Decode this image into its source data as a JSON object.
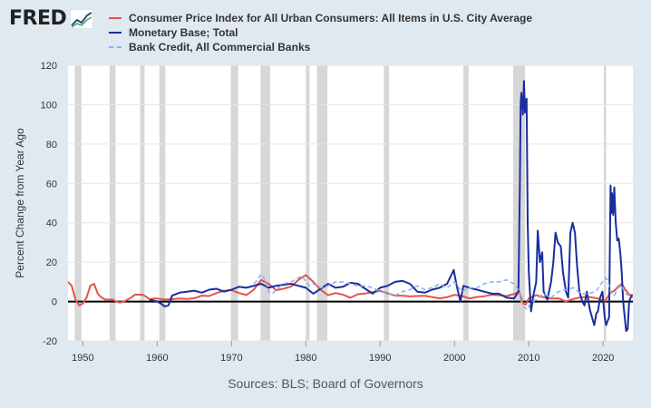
{
  "logo": {
    "text": "FRED",
    "icon": "chart-line-icon"
  },
  "source_text": "Sources: BLS; Board of Governors",
  "colors": {
    "cpi": "#e5534b",
    "monetary_base": "#1a2d9e",
    "bank_credit": "#8cb4e8",
    "recession": "#d7d7d7",
    "background": "#e1e9f0"
  },
  "chart_data": {
    "type": "line",
    "ylabel": "Percent Change from Year Ago",
    "xlim": [
      1948,
      2024
    ],
    "ylim": [
      -20,
      120
    ],
    "yticks": [
      -20,
      0,
      20,
      40,
      60,
      80,
      100,
      120
    ],
    "xticks": [
      1950,
      1960,
      1970,
      1980,
      1990,
      2000,
      2010,
      2020
    ],
    "grid": true,
    "legend_position": "top",
    "recessions": [
      [
        1948.9,
        1949.8
      ],
      [
        1953.6,
        1954.4
      ],
      [
        1957.7,
        1958.3
      ],
      [
        1960.3,
        1961.1
      ],
      [
        1969.9,
        1970.9
      ],
      [
        1973.9,
        1975.2
      ],
      [
        1980.0,
        1980.5
      ],
      [
        1981.5,
        1982.9
      ],
      [
        1990.5,
        1991.2
      ],
      [
        2001.2,
        2001.9
      ],
      [
        2007.9,
        2009.5
      ],
      [
        2020.1,
        2020.4
      ]
    ],
    "series": [
      {
        "name": "Consumer Price Index for All Urban Consumers: All Items in U.S. City Average",
        "style": "solid",
        "points": [
          [
            1948,
            10
          ],
          [
            1948.5,
            8
          ],
          [
            1949,
            1
          ],
          [
            1949.5,
            -2
          ],
          [
            1950,
            -1
          ],
          [
            1950.5,
            2
          ],
          [
            1951,
            8
          ],
          [
            1951.5,
            9
          ],
          [
            1952,
            4
          ],
          [
            1952.5,
            2
          ],
          [
            1953,
            1
          ],
          [
            1953.5,
            1
          ],
          [
            1954,
            1
          ],
          [
            1954.5,
            0
          ],
          [
            1955,
            -0.5
          ],
          [
            1955.5,
            0
          ],
          [
            1956,
            1
          ],
          [
            1956.5,
            2
          ],
          [
            1957,
            3.5
          ],
          [
            1957.5,
            3.5
          ],
          [
            1958,
            3.5
          ],
          [
            1958.5,
            2.5
          ],
          [
            1959,
            1
          ],
          [
            1959.5,
            1.5
          ],
          [
            1960,
            1.5
          ],
          [
            1961,
            1
          ],
          [
            1962,
            1.2
          ],
          [
            1963,
            1.5
          ],
          [
            1964,
            1.3
          ],
          [
            1965,
            1.7
          ],
          [
            1966,
            3
          ],
          [
            1967,
            2.8
          ],
          [
            1968,
            4.3
          ],
          [
            1969,
            5.5
          ],
          [
            1970,
            5.8
          ],
          [
            1971,
            4.3
          ],
          [
            1972,
            3.3
          ],
          [
            1973,
            6
          ],
          [
            1974,
            11
          ],
          [
            1975,
            9
          ],
          [
            1976,
            5.8
          ],
          [
            1977,
            6.5
          ],
          [
            1978,
            7.6
          ],
          [
            1979,
            11
          ],
          [
            1980,
            13.5
          ],
          [
            1981,
            10
          ],
          [
            1982,
            6
          ],
          [
            1983,
            3.2
          ],
          [
            1984,
            4.3
          ],
          [
            1985,
            3.5
          ],
          [
            1986,
            1.9
          ],
          [
            1987,
            3.7
          ],
          [
            1988,
            4.1
          ],
          [
            1989,
            4.8
          ],
          [
            1990,
            5.4
          ],
          [
            1991,
            4.2
          ],
          [
            1992,
            3
          ],
          [
            1993,
            3
          ],
          [
            1994,
            2.6
          ],
          [
            1995,
            2.8
          ],
          [
            1996,
            2.9
          ],
          [
            1997,
            2.3
          ],
          [
            1998,
            1.6
          ],
          [
            1999,
            2.2
          ],
          [
            2000,
            3.4
          ],
          [
            2001,
            2.8
          ],
          [
            2002,
            1.6
          ],
          [
            2003,
            2.3
          ],
          [
            2004,
            2.7
          ],
          [
            2005,
            3.4
          ],
          [
            2006,
            3.2
          ],
          [
            2007,
            2.8
          ],
          [
            2008,
            3.8
          ],
          [
            2008.7,
            5
          ],
          [
            2009.2,
            -1
          ],
          [
            2009.6,
            -1.5
          ],
          [
            2010,
            1.6
          ],
          [
            2011,
            3.2
          ],
          [
            2012,
            2.1
          ],
          [
            2013,
            1.5
          ],
          [
            2014,
            1.6
          ],
          [
            2015,
            0.1
          ],
          [
            2016,
            1.3
          ],
          [
            2017,
            2.1
          ],
          [
            2018,
            2.4
          ],
          [
            2019,
            1.8
          ],
          [
            2020.3,
            0.3
          ],
          [
            2021,
            4.7
          ],
          [
            2021.5,
            5.4
          ],
          [
            2022,
            7.5
          ],
          [
            2022.5,
            8.9
          ],
          [
            2023,
            6
          ],
          [
            2023.5,
            3.5
          ],
          [
            2024,
            3.2
          ]
        ]
      },
      {
        "name": "Monetary Base; Total",
        "style": "solid",
        "points": [
          [
            1959,
            1
          ],
          [
            1960,
            0
          ],
          [
            1960.5,
            -1
          ],
          [
            1961,
            -2.5
          ],
          [
            1961.5,
            -2
          ],
          [
            1962,
            3
          ],
          [
            1963,
            4.5
          ],
          [
            1964,
            5
          ],
          [
            1965,
            5.5
          ],
          [
            1966,
            4.5
          ],
          [
            1967,
            6
          ],
          [
            1968,
            6.5
          ],
          [
            1969,
            5
          ],
          [
            1970,
            6
          ],
          [
            1971,
            7.5
          ],
          [
            1972,
            7
          ],
          [
            1973,
            8
          ],
          [
            1974,
            9
          ],
          [
            1975,
            7
          ],
          [
            1976,
            8
          ],
          [
            1977,
            8.5
          ],
          [
            1978,
            9
          ],
          [
            1979,
            8
          ],
          [
            1980,
            7
          ],
          [
            1981,
            4
          ],
          [
            1982,
            6.5
          ],
          [
            1983,
            9
          ],
          [
            1984,
            7
          ],
          [
            1985,
            7.5
          ],
          [
            1986,
            9.5
          ],
          [
            1987,
            9
          ],
          [
            1988,
            6.5
          ],
          [
            1989,
            4
          ],
          [
            1990,
            7
          ],
          [
            1991,
            8
          ],
          [
            1992,
            10
          ],
          [
            1993,
            10.5
          ],
          [
            1994,
            9
          ],
          [
            1995,
            5
          ],
          [
            1996,
            4.5
          ],
          [
            1997,
            6
          ],
          [
            1998,
            7
          ],
          [
            1999,
            9
          ],
          [
            1999.9,
            16
          ],
          [
            2000.3,
            8
          ],
          [
            2000.8,
            0
          ],
          [
            2001.2,
            8
          ],
          [
            2002,
            7
          ],
          [
            2003,
            6
          ],
          [
            2004,
            5
          ],
          [
            2005,
            4
          ],
          [
            2006,
            4
          ],
          [
            2007,
            2
          ],
          [
            2008,
            1.5
          ],
          [
            2008.6,
            5
          ],
          [
            2008.8,
            60
          ],
          [
            2008.9,
            100
          ],
          [
            2009.0,
            106
          ],
          [
            2009.2,
            95
          ],
          [
            2009.35,
            112
          ],
          [
            2009.5,
            96
          ],
          [
            2009.7,
            103
          ],
          [
            2009.85,
            40
          ],
          [
            2010,
            15
          ],
          [
            2010.3,
            -5
          ],
          [
            2010.6,
            3
          ],
          [
            2011,
            10
          ],
          [
            2011.2,
            36
          ],
          [
            2011.5,
            20
          ],
          [
            2011.8,
            25
          ],
          [
            2012,
            5
          ],
          [
            2012.5,
            1
          ],
          [
            2013,
            10
          ],
          [
            2013.3,
            20
          ],
          [
            2013.6,
            35
          ],
          [
            2013.9,
            30
          ],
          [
            2014.3,
            28
          ],
          [
            2014.6,
            15
          ],
          [
            2015,
            5
          ],
          [
            2015.3,
            2
          ],
          [
            2015.6,
            35
          ],
          [
            2015.9,
            40
          ],
          [
            2016.2,
            35
          ],
          [
            2016.5,
            18
          ],
          [
            2016.8,
            5
          ],
          [
            2017.2,
            0
          ],
          [
            2017.5,
            -2
          ],
          [
            2017.8,
            5
          ],
          [
            2018.2,
            -4
          ],
          [
            2018.5,
            -8
          ],
          [
            2018.8,
            -12
          ],
          [
            2019.1,
            -6
          ],
          [
            2019.3,
            -5
          ],
          [
            2019.6,
            2
          ],
          [
            2019.9,
            5
          ],
          [
            2020.2,
            -8
          ],
          [
            2020.4,
            -12
          ],
          [
            2020.6,
            -10
          ],
          [
            2020.8,
            -8
          ],
          [
            2021.0,
            59
          ],
          [
            2021.1,
            45
          ],
          [
            2021.2,
            55
          ],
          [
            2021.35,
            44
          ],
          [
            2021.5,
            58
          ],
          [
            2021.7,
            40
          ],
          [
            2021.9,
            31
          ],
          [
            2022.1,
            32
          ],
          [
            2022.3,
            25
          ],
          [
            2022.5,
            15
          ],
          [
            2022.7,
            0
          ],
          [
            2022.9,
            -8
          ],
          [
            2023.1,
            -15
          ],
          [
            2023.3,
            -14
          ],
          [
            2023.5,
            0
          ],
          [
            2023.8,
            3
          ],
          [
            2024,
            2
          ]
        ]
      },
      {
        "name": "Bank Credit, All Commercial Banks",
        "style": "dashed",
        "points": [
          [
            1973,
            9
          ],
          [
            1973.5,
            11
          ],
          [
            1974,
            14
          ],
          [
            1974.5,
            11
          ],
          [
            1975,
            5
          ],
          [
            1975.5,
            4
          ],
          [
            1976,
            6
          ],
          [
            1977,
            9
          ],
          [
            1978,
            10
          ],
          [
            1979,
            12
          ],
          [
            1979.5,
            13
          ],
          [
            1980,
            10
          ],
          [
            1980.5,
            8
          ],
          [
            1981,
            9
          ],
          [
            1982,
            7
          ],
          [
            1983,
            8
          ],
          [
            1984,
            10
          ],
          [
            1985,
            10
          ],
          [
            1986,
            9
          ],
          [
            1987,
            8
          ],
          [
            1988,
            8
          ],
          [
            1989,
            7
          ],
          [
            1990,
            5
          ],
          [
            1991,
            4
          ],
          [
            1992,
            3
          ],
          [
            1993,
            5
          ],
          [
            1994,
            6
          ],
          [
            1995,
            8
          ],
          [
            1996,
            6
          ],
          [
            1997,
            7
          ],
          [
            1998,
            9
          ],
          [
            1999,
            7
          ],
          [
            2000,
            10
          ],
          [
            2001,
            5
          ],
          [
            2002,
            7
          ],
          [
            2003,
            7
          ],
          [
            2004,
            9
          ],
          [
            2005,
            10
          ],
          [
            2006,
            10
          ],
          [
            2007,
            11
          ],
          [
            2008,
            9
          ],
          [
            2008.6,
            6
          ],
          [
            2009,
            0
          ],
          [
            2009.4,
            -3
          ],
          [
            2009.8,
            -4
          ],
          [
            2010.2,
            -1
          ],
          [
            2011,
            1
          ],
          [
            2012,
            4
          ],
          [
            2013,
            2
          ],
          [
            2014,
            5
          ],
          [
            2015,
            6
          ],
          [
            2016,
            7
          ],
          [
            2017,
            4
          ],
          [
            2018,
            4
          ],
          [
            2019,
            5
          ],
          [
            2020.3,
            12
          ],
          [
            2020.6,
            11
          ],
          [
            2021,
            5
          ],
          [
            2021.5,
            3
          ],
          [
            2022,
            7
          ],
          [
            2022.5,
            8
          ],
          [
            2023,
            4
          ],
          [
            2024,
            2
          ]
        ]
      }
    ]
  }
}
